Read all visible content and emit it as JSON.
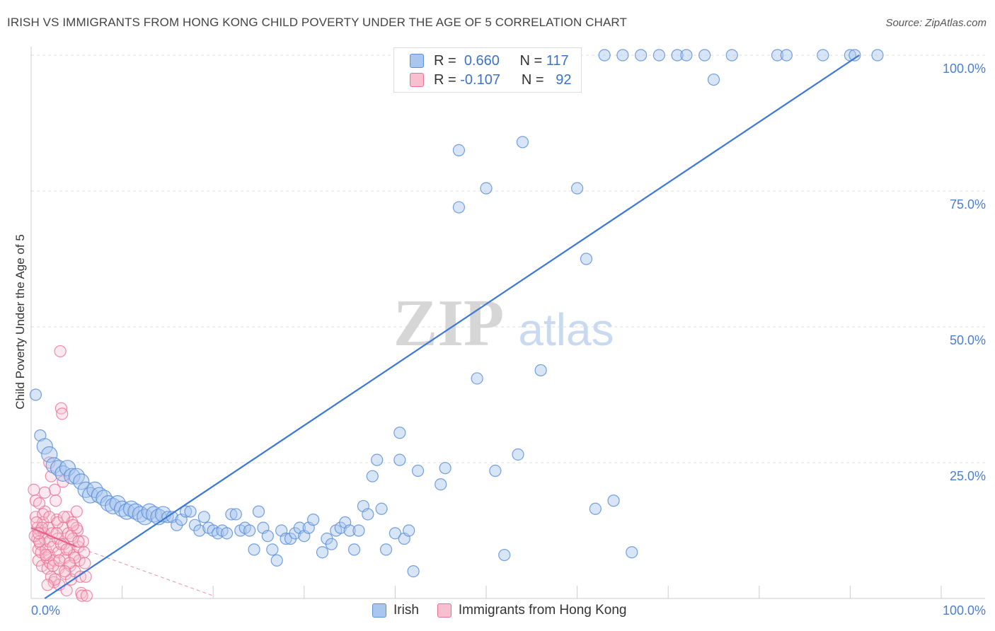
{
  "title": "IRISH VS IMMIGRANTS FROM HONG KONG CHILD POVERTY UNDER THE AGE OF 5 CORRELATION CHART",
  "source": "Source: ZipAtlas.com",
  "watermark": {
    "zip": "ZIP",
    "atlas": "atlas"
  },
  "legend": {
    "rows": [
      {
        "r_label": "R =",
        "r_value": "0.660",
        "n_label": "N =",
        "n_value": "117"
      },
      {
        "r_label": "R =",
        "r_value": "-0.107",
        "n_label": "N =",
        "n_value": "92"
      }
    ]
  },
  "colors": {
    "irish_fill": "#a9c6ee",
    "irish_stroke": "#5d8fd8",
    "irish_line": "#3b78d8",
    "hk_fill": "#f7bfd0",
    "hk_stroke": "#ea7096",
    "hk_line": "#e5608a",
    "tick_label": "#4a7fd0",
    "grid": "#dcdcdc"
  },
  "chart_data": {
    "type": "scatter",
    "title": "IRISH VS IMMIGRANTS FROM HONG KONG CHILD POVERTY UNDER THE AGE OF 5 CORRELATION CHART",
    "xlabel": "",
    "ylabel": "Child Poverty Under the Age of 5",
    "xlim": [
      0,
      100
    ],
    "ylim": [
      0,
      100
    ],
    "x_tick_labels": [
      "0.0%",
      "100.0%"
    ],
    "y_ticks": [
      25,
      50,
      75,
      100
    ],
    "y_tick_labels": [
      "25.0%",
      "50.0%",
      "75.0%",
      "100.0%"
    ],
    "grid": true,
    "legend_position": "top-center",
    "series": [
      {
        "name": "Irish",
        "r": 0.66,
        "n": 117,
        "trend": {
          "x0": 1.5,
          "y0": 0,
          "x1": 91,
          "y1": 100
        },
        "points": [
          [
            0.5,
            37.5
          ],
          [
            1,
            30
          ],
          [
            1.5,
            28
          ],
          [
            2,
            26.5
          ],
          [
            2.5,
            24.5
          ],
          [
            3,
            24
          ],
          [
            3.5,
            23
          ],
          [
            4,
            24
          ],
          [
            4.5,
            22.5
          ],
          [
            5,
            22.5
          ],
          [
            5.5,
            21.5
          ],
          [
            6,
            20
          ],
          [
            6.5,
            19
          ],
          [
            7,
            20
          ],
          [
            7.5,
            19
          ],
          [
            8,
            18.5
          ],
          [
            8.5,
            17.5
          ],
          [
            9,
            17
          ],
          [
            9.5,
            17.5
          ],
          [
            10,
            16.5
          ],
          [
            10.5,
            16
          ],
          [
            11,
            16.5
          ],
          [
            11.5,
            16
          ],
          [
            12,
            15.5
          ],
          [
            12.5,
            15
          ],
          [
            13,
            16
          ],
          [
            13.5,
            15.5
          ],
          [
            14,
            15
          ],
          [
            14.5,
            15.5
          ],
          [
            15,
            15
          ],
          [
            15.5,
            15
          ],
          [
            16,
            13.5
          ],
          [
            16.5,
            14.5
          ],
          [
            17,
            16
          ],
          [
            17.5,
            16
          ],
          [
            18,
            13.5
          ],
          [
            18.5,
            12.5
          ],
          [
            19,
            15
          ],
          [
            19.5,
            13
          ],
          [
            20,
            12.5
          ],
          [
            20.5,
            12
          ],
          [
            21,
            12.5
          ],
          [
            21.5,
            12
          ],
          [
            22,
            15.5
          ],
          [
            22.5,
            15.5
          ],
          [
            23,
            12.5
          ],
          [
            23.5,
            13
          ],
          [
            24,
            12.5
          ],
          [
            24.5,
            9
          ],
          [
            25,
            16
          ],
          [
            25.5,
            13
          ],
          [
            26,
            11.5
          ],
          [
            26.5,
            9
          ],
          [
            27,
            7
          ],
          [
            27.5,
            12.5
          ],
          [
            28,
            11
          ],
          [
            28.5,
            11
          ],
          [
            29,
            12
          ],
          [
            29.5,
            13
          ],
          [
            30,
            11.5
          ],
          [
            30.5,
            13
          ],
          [
            31,
            14.5
          ],
          [
            32,
            8.5
          ],
          [
            32.5,
            11
          ],
          [
            33,
            10
          ],
          [
            33.5,
            12.5
          ],
          [
            34,
            13
          ],
          [
            34.5,
            14
          ],
          [
            35,
            12.5
          ],
          [
            35.5,
            9
          ],
          [
            36,
            12.5
          ],
          [
            36.5,
            17
          ],
          [
            37,
            15.5
          ],
          [
            37.5,
            22.5
          ],
          [
            38,
            25.5
          ],
          [
            38.5,
            16.5
          ],
          [
            39,
            9
          ],
          [
            40,
            12
          ],
          [
            40.5,
            25.5
          ],
          [
            40.5,
            30.5
          ],
          [
            41,
            11
          ],
          [
            41.5,
            12.5
          ],
          [
            42,
            5
          ],
          [
            42.5,
            23.5
          ],
          [
            45,
            21
          ],
          [
            45.5,
            24
          ],
          [
            47,
            72
          ],
          [
            47,
            82.5
          ],
          [
            49,
            40.5
          ],
          [
            50,
            75.5
          ],
          [
            51,
            23.5
          ],
          [
            52,
            8
          ],
          [
            53.5,
            26.5
          ],
          [
            54,
            84
          ],
          [
            56,
            42
          ],
          [
            58,
            100
          ],
          [
            60,
            75.5
          ],
          [
            62,
            16.5
          ],
          [
            63,
            100
          ],
          [
            64,
            18
          ],
          [
            65,
            100
          ],
          [
            67,
            100
          ],
          [
            69,
            100
          ],
          [
            71,
            100
          ],
          [
            72,
            100
          ],
          [
            75,
            95.5
          ],
          [
            77,
            100
          ],
          [
            82,
            100
          ],
          [
            83,
            100
          ],
          [
            87,
            100
          ],
          [
            90,
            100
          ],
          [
            90.5,
            100
          ],
          [
            93,
            100
          ],
          [
            74,
            100
          ],
          [
            50,
            100
          ],
          [
            61,
            62.5
          ],
          [
            66,
            8.5
          ]
        ]
      },
      {
        "name": "Immigrants from Hong Kong",
        "r": -0.107,
        "n": 92,
        "trend": {
          "x0": 0,
          "y0": 13,
          "x1": 5,
          "y1": 9.5
        },
        "trend_dashed": {
          "x0": 5,
          "y0": 9.5,
          "x1": 20,
          "y1": 0.5
        },
        "points": [
          [
            0.3,
            20
          ],
          [
            0.5,
            18
          ],
          [
            0.5,
            15
          ],
          [
            0.7,
            13
          ],
          [
            0.7,
            11
          ],
          [
            0.8,
            9
          ],
          [
            0.8,
            7
          ],
          [
            1,
            12.5
          ],
          [
            1,
            10
          ],
          [
            1.1,
            8.5
          ],
          [
            1.2,
            6
          ],
          [
            1.3,
            14
          ],
          [
            1.4,
            12
          ],
          [
            1.5,
            16
          ],
          [
            1.5,
            11
          ],
          [
            1.6,
            9
          ],
          [
            1.7,
            7.5
          ],
          [
            1.8,
            5.5
          ],
          [
            1.9,
            13
          ],
          [
            2,
            10.5
          ],
          [
            2,
            8
          ],
          [
            2.1,
            6.5
          ],
          [
            2.2,
            4
          ],
          [
            2.3,
            12
          ],
          [
            2.4,
            9.5
          ],
          [
            2.5,
            7
          ],
          [
            2.5,
            3
          ],
          [
            2.6,
            20
          ],
          [
            2.7,
            18
          ],
          [
            2.8,
            14.5
          ],
          [
            2.9,
            11
          ],
          [
            3,
            8.5
          ],
          [
            3,
            5.5
          ],
          [
            3.1,
            2.5
          ],
          [
            3.2,
            45.5
          ],
          [
            3.3,
            35
          ],
          [
            3.4,
            34
          ],
          [
            3.5,
            21.5
          ],
          [
            3.5,
            13
          ],
          [
            3.6,
            10
          ],
          [
            3.7,
            7.5
          ],
          [
            3.8,
            4.5
          ],
          [
            3.9,
            1.5
          ],
          [
            4,
            15
          ],
          [
            4.1,
            12
          ],
          [
            4.2,
            9
          ],
          [
            4.3,
            6
          ],
          [
            4.4,
            3.5
          ],
          [
            4.5,
            14
          ],
          [
            4.6,
            11
          ],
          [
            4.7,
            8
          ],
          [
            4.8,
            5
          ],
          [
            5,
            16
          ],
          [
            5.1,
            12.5
          ],
          [
            5.2,
            9.5
          ],
          [
            5.3,
            7
          ],
          [
            5.4,
            4
          ],
          [
            5.5,
            1
          ],
          [
            5.6,
            0.5
          ],
          [
            5.7,
            10.5
          ],
          [
            5.8,
            8.5
          ],
          [
            5.9,
            6.5
          ],
          [
            6,
            4
          ],
          [
            6.1,
            0.5
          ],
          [
            2,
            25
          ],
          [
            2.2,
            22.5
          ],
          [
            1.5,
            19.5
          ],
          [
            0.9,
            17.5
          ],
          [
            1.3,
            15.5
          ],
          [
            0.6,
            14
          ],
          [
            2.8,
            12
          ],
          [
            3.3,
            10
          ],
          [
            4.8,
            7.5
          ],
          [
            4.2,
            6.5
          ],
          [
            3.7,
            5
          ],
          [
            2.6,
            3.5
          ],
          [
            1.8,
            2.5
          ],
          [
            0.4,
            11.5
          ],
          [
            0.9,
            10.5
          ],
          [
            1.6,
            8
          ],
          [
            2.4,
            6
          ],
          [
            3.1,
            7
          ],
          [
            3.9,
            9
          ],
          [
            4.4,
            11.5
          ],
          [
            5,
            13
          ],
          [
            2,
            15
          ],
          [
            1.2,
            13
          ],
          [
            0.8,
            12
          ],
          [
            2.9,
            14
          ],
          [
            3.6,
            15
          ],
          [
            4.6,
            13.5
          ],
          [
            5.2,
            10.5
          ]
        ]
      }
    ]
  },
  "bottom_legend": [
    {
      "label": "Irish"
    },
    {
      "label": "Immigrants from Hong Kong"
    }
  ]
}
